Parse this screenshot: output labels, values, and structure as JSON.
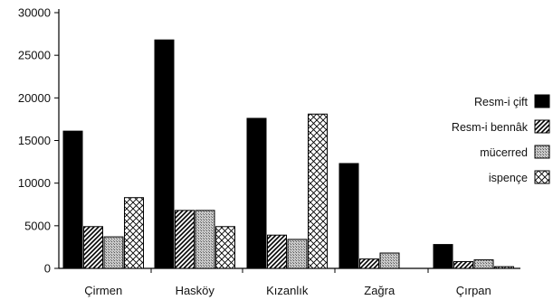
{
  "chart_data": {
    "type": "bar",
    "categories": [
      "Çirmen",
      "Hasköy",
      "Kızanlık",
      "Zağra",
      "Çırpan"
    ],
    "series": [
      {
        "name": "Resm-i çift",
        "values": [
          16100,
          26800,
          17600,
          12300,
          2800
        ],
        "pattern": "solid"
      },
      {
        "name": "Resm-i bennâk",
        "values": [
          4900,
          6800,
          3900,
          1100,
          800
        ],
        "pattern": "diagonal"
      },
      {
        "name": "mücerred",
        "values": [
          3700,
          6800,
          3400,
          1800,
          1000
        ],
        "pattern": "dotted"
      },
      {
        "name": "ispençe",
        "values": [
          8300,
          4900,
          18100,
          0,
          200
        ],
        "pattern": "crosshatch"
      }
    ],
    "yticks": [
      0,
      5000,
      10000,
      15000,
      20000,
      25000,
      30000
    ],
    "ylim": [
      0,
      30000
    ],
    "legend_position": "right",
    "grid": false
  }
}
